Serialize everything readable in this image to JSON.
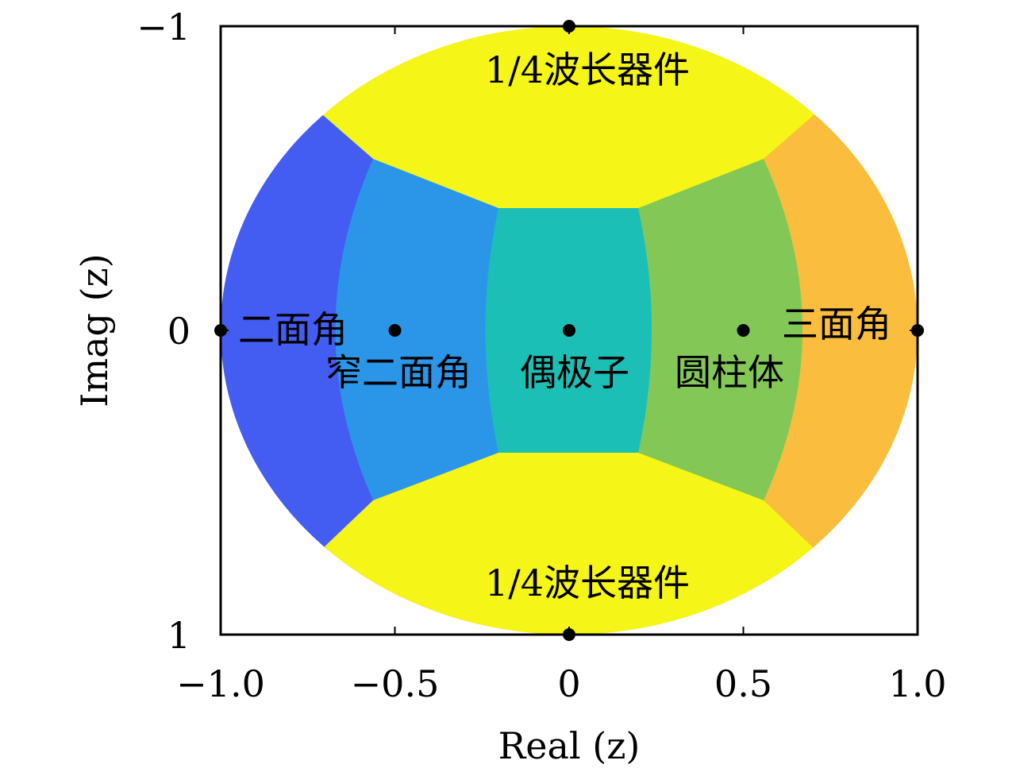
{
  "chart_data": {
    "type": "region-map",
    "xlabel": "Real (z)",
    "ylabel": "Imag (z)",
    "xlim": [
      -1.0,
      1.0
    ],
    "ylim": [
      -1,
      1
    ],
    "y_axis_reversed": true,
    "x_ticks": [
      "−1.0",
      "−0.5",
      "0",
      "0.5",
      "1.0"
    ],
    "x_tick_values": [
      -1.0,
      -0.5,
      0,
      0.5,
      1.0
    ],
    "y_ticks": [
      "−1",
      "0",
      "1"
    ],
    "y_tick_values": [
      -1,
      0,
      1
    ],
    "grid": false,
    "points": [
      {
        "x": -1.0,
        "y": 0
      },
      {
        "x": -0.5,
        "y": 0
      },
      {
        "x": 0,
        "y": 0
      },
      {
        "x": 0.5,
        "y": 0
      },
      {
        "x": 1.0,
        "y": 0
      },
      {
        "x": 0,
        "y": -1
      },
      {
        "x": 0,
        "y": 1
      }
    ],
    "regions": [
      {
        "label": "二面角",
        "color": "#435cf2",
        "at": {
          "x": -1.0,
          "y": 0
        }
      },
      {
        "label": "窄二面角",
        "color": "#2b96e8",
        "at": {
          "x": -0.5,
          "y": 0
        }
      },
      {
        "label": "偶极子",
        "color": "#1bbfb6",
        "at": {
          "x": 0,
          "y": 0
        }
      },
      {
        "label": "圆柱体",
        "color": "#83c857",
        "at": {
          "x": 0.5,
          "y": 0
        }
      },
      {
        "label": "三面角",
        "color": "#fbbd3d",
        "at": {
          "x": 1.0,
          "y": 0
        }
      },
      {
        "label": "1/4波长器件",
        "color": "#f5f517",
        "at": {
          "x": 0,
          "y": -1
        }
      },
      {
        "label": "1/4波长器件",
        "color": "#f5f517",
        "at": {
          "x": 0,
          "y": 1
        }
      }
    ]
  }
}
